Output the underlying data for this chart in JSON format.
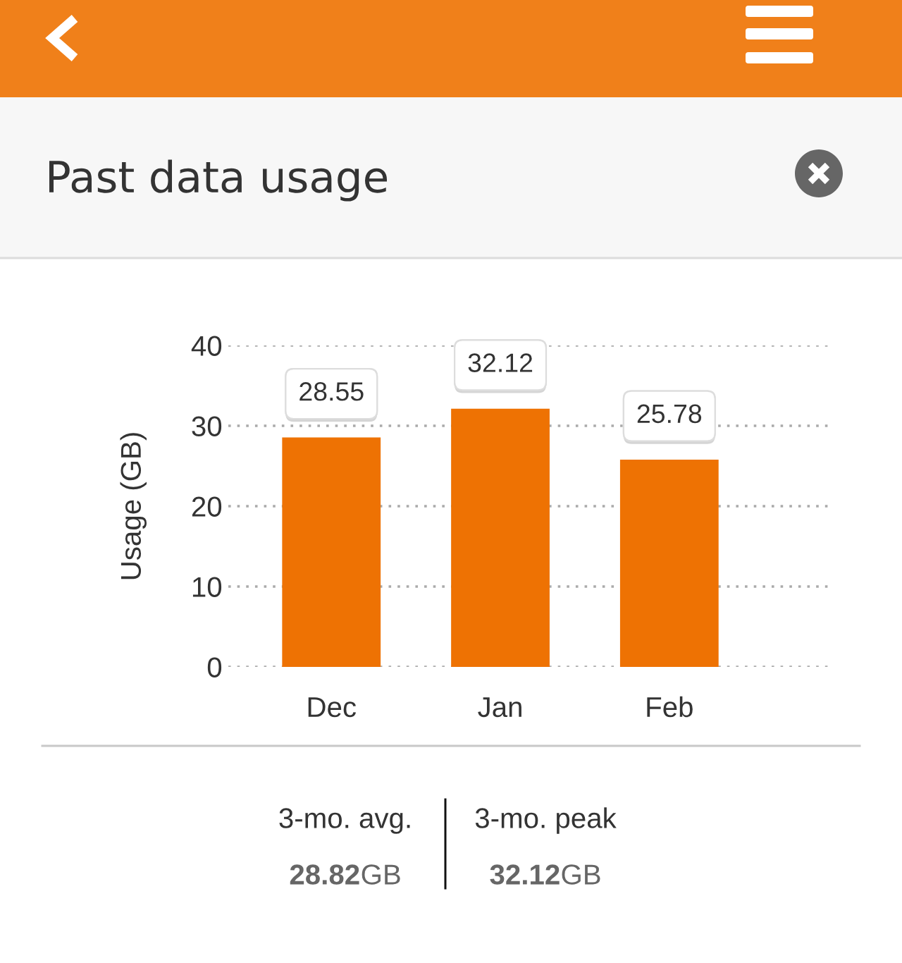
{
  "chart_data": {
    "type": "bar",
    "title": "Past data usage",
    "ylabel": "Usage (GB)",
    "categories": [
      "Dec",
      "Jan",
      "Feb"
    ],
    "values": [
      28.55,
      32.12,
      25.78
    ],
    "color": "#ee7203",
    "ylim": [
      0,
      40
    ],
    "yticks": [
      0,
      10,
      20,
      30,
      40
    ],
    "grid": "y",
    "data_labels": true,
    "annotations": [
      "3-mo. avg.",
      "28.82GB",
      "3-mo. peak",
      "32.12GB"
    ]
  }
}
